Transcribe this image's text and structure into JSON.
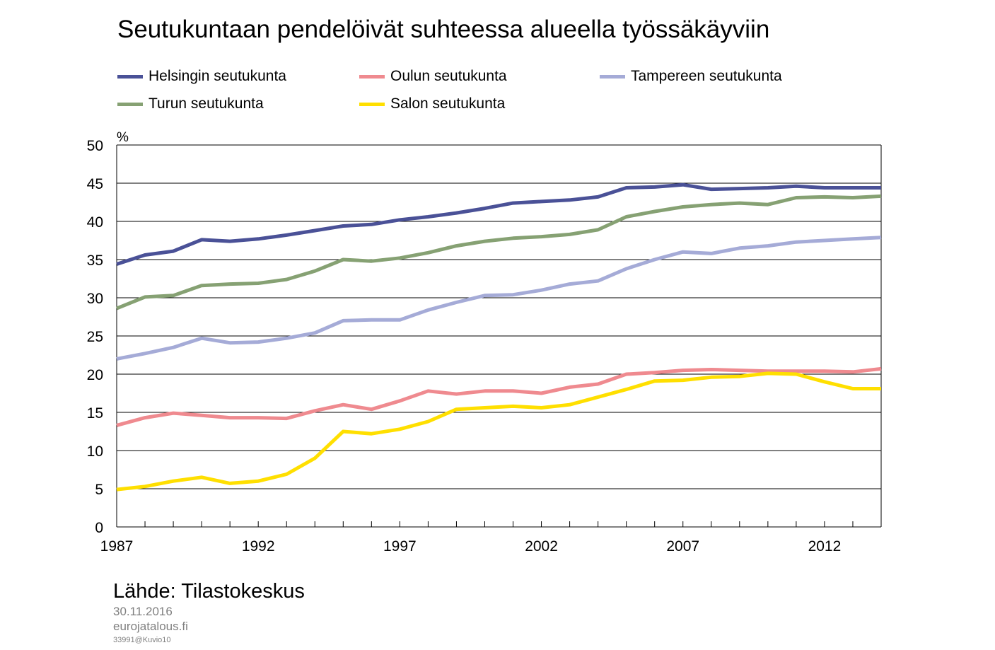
{
  "title": "Seutukuntaan pendelöivät suhteessa alueella työssäkäyviin",
  "footer": {
    "source": "Lähde: Tilastokeskus",
    "date": "30.11.2016",
    "site": "eurojatalous.fi",
    "code": "33991@Kuvio10"
  },
  "chart_data": {
    "type": "line",
    "title": "Seutukuntaan pendelöivät suhteessa alueella työssäkäyviin",
    "xlabel": "",
    "ylabel": "%",
    "x": [
      1987,
      1988,
      1989,
      1990,
      1991,
      1992,
      1993,
      1994,
      1995,
      1996,
      1997,
      1998,
      1999,
      2000,
      2001,
      2002,
      2003,
      2004,
      2005,
      2006,
      2007,
      2008,
      2009,
      2010,
      2011,
      2012,
      2013,
      2014
    ],
    "xlim": [
      1987,
      2014
    ],
    "ylim": [
      0,
      50
    ],
    "yticks": [
      0,
      5,
      10,
      15,
      20,
      25,
      30,
      35,
      40,
      45,
      50
    ],
    "xticks": [
      1987,
      1992,
      1997,
      2002,
      2007,
      2012
    ],
    "grid": "horizontal",
    "legend_position": "top",
    "series": [
      {
        "name": "Helsingin seutukunta",
        "color": "#4a5197",
        "values": [
          34.4,
          35.6,
          36.1,
          37.6,
          37.4,
          37.7,
          38.2,
          38.8,
          39.4,
          39.6,
          40.2,
          40.6,
          41.1,
          41.7,
          42.4,
          42.6,
          42.8,
          43.2,
          44.4,
          44.5,
          44.8,
          44.2,
          44.3,
          44.4,
          44.6,
          44.4,
          44.4,
          44.4
        ]
      },
      {
        "name": "Oulun seutukunta",
        "color": "#ef8a8f",
        "values": [
          13.3,
          14.3,
          14.9,
          14.6,
          14.3,
          14.3,
          14.2,
          15.2,
          16.0,
          15.4,
          16.5,
          17.8,
          17.4,
          17.8,
          17.8,
          17.5,
          18.3,
          18.7,
          20.0,
          20.2,
          20.5,
          20.6,
          20.5,
          20.4,
          20.4,
          20.4,
          20.3,
          20.7
        ]
      },
      {
        "name": "Tampereen seutukunta",
        "color": "#a5abd7",
        "values": [
          22.0,
          22.7,
          23.5,
          24.7,
          24.1,
          24.2,
          24.7,
          25.4,
          27.0,
          27.1,
          27.1,
          28.4,
          29.4,
          30.3,
          30.4,
          31.0,
          31.8,
          32.2,
          33.8,
          35.0,
          36.0,
          35.8,
          36.5,
          36.8,
          37.3,
          37.5,
          37.7,
          37.9
        ]
      },
      {
        "name": "Turun seutukunta",
        "color": "#86a173",
        "values": [
          28.6,
          30.1,
          30.3,
          31.6,
          31.8,
          31.9,
          32.4,
          33.5,
          35.0,
          34.8,
          35.2,
          35.9,
          36.8,
          37.4,
          37.8,
          38.0,
          38.3,
          38.9,
          40.6,
          41.3,
          41.9,
          42.2,
          42.4,
          42.2,
          43.1,
          43.2,
          43.1,
          43.3
        ]
      },
      {
        "name": "Salon seutukunta",
        "color": "#ffdf00",
        "values": [
          4.9,
          5.3,
          6.0,
          6.5,
          5.7,
          6.0,
          6.9,
          9.0,
          12.5,
          12.2,
          12.8,
          13.8,
          15.4,
          15.6,
          15.8,
          15.6,
          16.0,
          17.0,
          18.0,
          19.1,
          19.2,
          19.6,
          19.7,
          20.1,
          20.0,
          19.0,
          18.1,
          18.1
        ]
      }
    ]
  }
}
